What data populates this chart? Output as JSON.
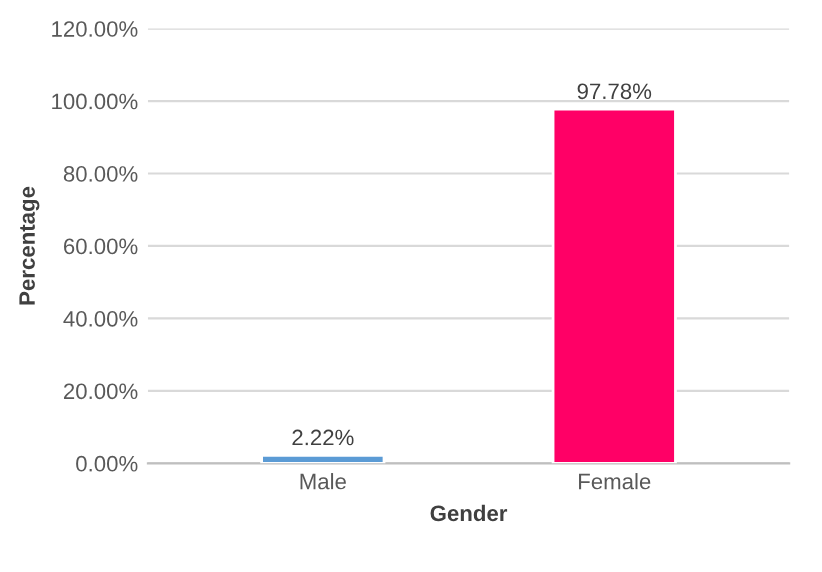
{
  "chart_data": {
    "type": "bar",
    "xlabel": "Gender",
    "ylabel": "Percentage",
    "categories": [
      "Male",
      "Female"
    ],
    "values": [
      2.22,
      97.78
    ],
    "colors": [
      "#5b9bd5",
      "#ff0066"
    ],
    "value_labels": [
      "2.22%",
      "97.78%"
    ],
    "ylim": [
      0,
      120
    ],
    "yticks": [
      {
        "value": 0,
        "label": "0.00%"
      },
      {
        "value": 20,
        "label": "20.00%"
      },
      {
        "value": 40,
        "label": "40.00%"
      },
      {
        "value": 60,
        "label": "60.00%"
      },
      {
        "value": 80,
        "label": "80.00%"
      },
      {
        "value": 100,
        "label": "100.00%"
      },
      {
        "value": 120,
        "label": "120.00%"
      }
    ],
    "grid": "y"
  }
}
